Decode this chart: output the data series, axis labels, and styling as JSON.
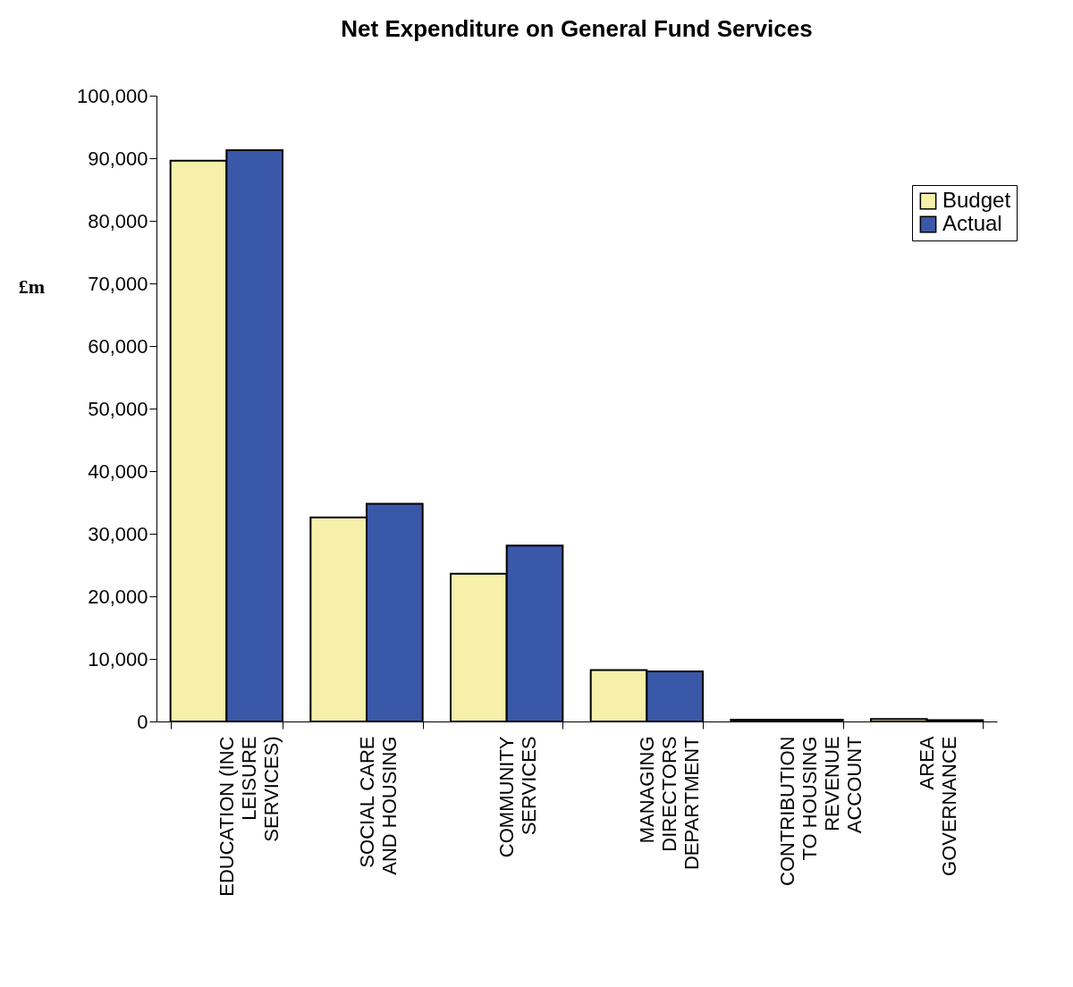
{
  "chart_data": {
    "type": "bar",
    "title": "Net Expenditure on General Fund Services",
    "ylabel": "£m",
    "categories": [
      "EDUCATION (INC LEISURE SERVICES)",
      "SOCIAL CARE AND HOUSING",
      "COMMUNITY SERVICES",
      "MANAGING DIRECTORS DEPARTMENT",
      "CONTRIBUTION TO HOUSING REVENUE ACCOUNT",
      "AREA GOVERNANCE"
    ],
    "series": [
      {
        "name": "Budget",
        "color": "#f7f0ab",
        "values": [
          89600,
          32600,
          23600,
          8200,
          300,
          400
        ]
      },
      {
        "name": "Actual",
        "color": "#3a58a8",
        "values": [
          91300,
          34800,
          28100,
          8000,
          300,
          200
        ]
      }
    ],
    "ylim": [
      0,
      100000
    ],
    "yticks": [
      0,
      {
        "value": 10000,
        "label": "10,000"
      },
      {
        "value": 20000,
        "label": "20,000"
      },
      {
        "value": 30000,
        "label": "30,000"
      },
      {
        "value": 40000,
        "label": "40,000"
      },
      {
        "value": 50000,
        "label": "50,000"
      },
      {
        "value": 60000,
        "label": "60,000"
      },
      {
        "value": 70000,
        "label": "70,000"
      },
      {
        "value": 80000,
        "label": "80,000"
      },
      {
        "value": 90000,
        "label": "90,000"
      },
      {
        "value": 100000,
        "label": "100,000"
      }
    ],
    "grid": false,
    "legend": "top right"
  }
}
